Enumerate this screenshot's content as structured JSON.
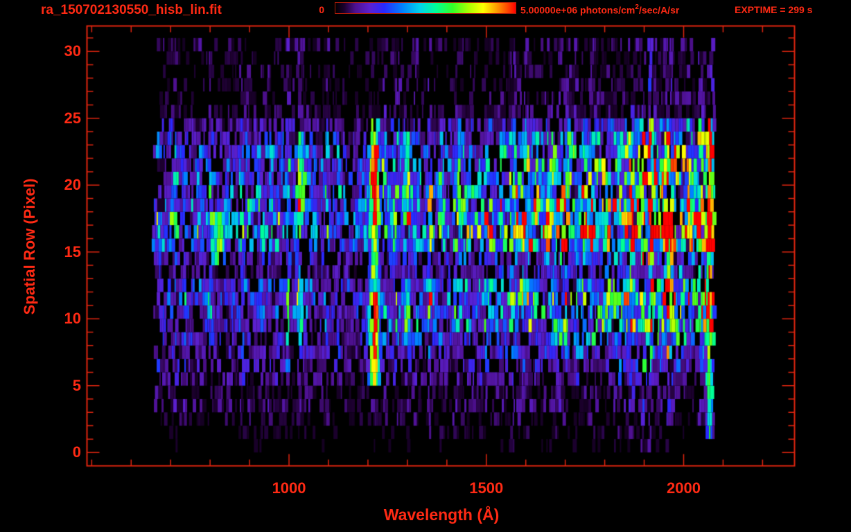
{
  "header": {
    "title": "ra_150702130550_hisb_lin.fit",
    "colorbar": {
      "min_label": "0",
      "max_value": "5.00000e+06",
      "units_prefix": " photons/cm",
      "units_exponent": "2",
      "units_suffix": "/sec/A/sr"
    },
    "exptime": "EXPTIME = 299 s"
  },
  "colors": {
    "background": "#000000",
    "axis_red": "#e2250f",
    "text_red": "#ff2a14",
    "colorbar_border": "#b01c08"
  },
  "chart_data": {
    "type": "heatmap",
    "title": "ra_150702130550_hisb_lin.fit",
    "xlabel": "Wavelength (Å)",
    "ylabel": "Spatial Row (Pixel)",
    "xlim": [
      488,
      2281
    ],
    "ylim": [
      -1,
      31.9
    ],
    "x_major_ticks": [
      1000,
      1500,
      2000
    ],
    "x_minor_start": 500,
    "x_minor_end": 2200,
    "x_minor_step": 100,
    "y_major_ticks": [
      0,
      5,
      10,
      15,
      20,
      25,
      30
    ],
    "y_minor_start": 0,
    "y_minor_end": 31,
    "y_minor_step": 1,
    "colorbar_range_photons": [
      0,
      5000000
    ],
    "colorbar_units": "photons/cm^2/sec/A/sr",
    "exposure_time_s": 299,
    "data_wavelength_end": 2075,
    "colormap_stops": [
      [
        0.0,
        0,
        0,
        0
      ],
      [
        0.05,
        28,
        0,
        46
      ],
      [
        0.11,
        78,
        16,
        144
      ],
      [
        0.19,
        92,
        32,
        208
      ],
      [
        0.27,
        40,
        40,
        255
      ],
      [
        0.37,
        0,
        128,
        255
      ],
      [
        0.47,
        0,
        212,
        235
      ],
      [
        0.56,
        0,
        255,
        150
      ],
      [
        0.65,
        50,
        255,
        40
      ],
      [
        0.74,
        170,
        255,
        0
      ],
      [
        0.82,
        255,
        255,
        0
      ],
      [
        0.9,
        255,
        150,
        0
      ],
      [
        0.96,
        255,
        64,
        0
      ],
      [
        1.0,
        255,
        0,
        0
      ]
    ],
    "rows": [
      {
        "r": 0,
        "start": 700,
        "base": 0.02,
        "ramp": 0.04
      },
      {
        "r": 1,
        "start": 688,
        "base": 0.03,
        "ramp": 0.05
      },
      {
        "r": 2,
        "start": 660,
        "base": 0.055,
        "ramp": 0.08
      },
      {
        "r": 3,
        "start": 648,
        "base": 0.075,
        "ramp": 0.1
      },
      {
        "r": 4,
        "start": 655,
        "base": 0.065,
        "ramp": 0.1
      },
      {
        "r": 5,
        "start": 660,
        "base": 0.1,
        "ramp": 0.17
      },
      {
        "r": 6,
        "start": 650,
        "base": 0.115,
        "ramp": 0.2
      },
      {
        "r": 7,
        "start": 653,
        "base": 0.13,
        "ramp": 0.26
      },
      {
        "r": 8,
        "start": 658,
        "base": 0.16,
        "ramp": 0.38
      },
      {
        "r": 9,
        "start": 655,
        "base": 0.195,
        "ramp": 0.5
      },
      {
        "r": 10,
        "start": 652,
        "base": 0.22,
        "ramp": 0.56
      },
      {
        "r": 11,
        "start": 650,
        "base": 0.235,
        "ramp": 0.58
      },
      {
        "r": 12,
        "start": 654,
        "base": 0.2,
        "ramp": 0.5
      },
      {
        "r": 13,
        "start": 646,
        "base": 0.12,
        "ramp": 0.3
      },
      {
        "r": 14,
        "start": 648,
        "base": 0.14,
        "ramp": 0.36
      },
      {
        "r": 15,
        "start": 644,
        "base": 0.26,
        "ramp": 0.7
      },
      {
        "r": 16,
        "start": 646,
        "base": 0.33,
        "ramp": 0.92
      },
      {
        "r": 17,
        "start": 648,
        "base": 0.355,
        "ramp": 0.95
      },
      {
        "r": 18,
        "start": 652,
        "base": 0.3,
        "ramp": 0.78
      },
      {
        "r": 19,
        "start": 656,
        "base": 0.27,
        "ramp": 0.62
      },
      {
        "r": 20,
        "start": 660,
        "base": 0.25,
        "ramp": 0.57
      },
      {
        "r": 21,
        "start": 658,
        "base": 0.24,
        "ramp": 0.52
      },
      {
        "r": 22,
        "start": 655,
        "base": 0.22,
        "ramp": 0.48
      },
      {
        "r": 23,
        "start": 652,
        "base": 0.17,
        "ramp": 0.42
      },
      {
        "r": 24,
        "start": 658,
        "base": 0.12,
        "ramp": 0.3
      },
      {
        "r": 25,
        "start": 668,
        "base": 0.06,
        "ramp": 0.1
      },
      {
        "r": 26,
        "start": 652,
        "base": 0.05,
        "ramp": 0.09
      },
      {
        "r": 27,
        "start": 664,
        "base": 0.05,
        "ramp": 0.09
      },
      {
        "r": 28,
        "start": 672,
        "base": 0.05,
        "ramp": 0.08
      },
      {
        "r": 29,
        "start": 668,
        "base": 0.05,
        "ramp": 0.08
      },
      {
        "r": 30,
        "start": 664,
        "base": 0.06,
        "ramp": 0.09
      }
    ],
    "features": [
      {
        "name": "lyman-alpha-lower-core",
        "center": 1213,
        "sigma": 13,
        "row_lo": 5,
        "row_hi": 11,
        "amp": 0.92
      },
      {
        "name": "lyman-alpha-mid",
        "center": 1213,
        "sigma": 12,
        "row_lo": 12,
        "row_hi": 16,
        "amp": 0.5
      },
      {
        "name": "lyman-alpha-upper-core",
        "center": 1213,
        "sigma": 13,
        "row_lo": 17,
        "row_hi": 22,
        "amp": 0.88
      },
      {
        "name": "lyman-alpha-top",
        "center": 1213,
        "sigma": 11,
        "row_lo": 23,
        "row_hi": 24,
        "amp": 0.6
      },
      {
        "name": "lyman-beta-upper",
        "center": 1027,
        "sigma": 8,
        "row_lo": 17,
        "row_hi": 23,
        "amp": 0.4
      },
      {
        "name": "lyman-beta-lower",
        "center": 1027,
        "sigma": 8,
        "row_lo": 9,
        "row_hi": 12,
        "amp": 0.26
      },
      {
        "name": "oi-1304-upper",
        "center": 1295,
        "sigma": 9,
        "row_lo": 17,
        "row_hi": 23,
        "amp": 0.38
      },
      {
        "name": "oi-1304-lower",
        "center": 1295,
        "sigma": 9,
        "row_lo": 8,
        "row_hi": 12,
        "amp": 0.34
      },
      {
        "name": "left-blob-820",
        "center": 820,
        "sigma": 16,
        "row_lo": 14,
        "row_hi": 17,
        "amp": 0.5
      },
      {
        "name": "detector-edge-2060",
        "center": 2062,
        "sigma": 7,
        "row_lo": 1,
        "row_hi": 24,
        "amp": 0.55
      },
      {
        "name": "edge-red-spot",
        "center": 2062,
        "sigma": 8,
        "row_lo": 15,
        "row_hi": 16,
        "amp": 1.0
      }
    ]
  }
}
